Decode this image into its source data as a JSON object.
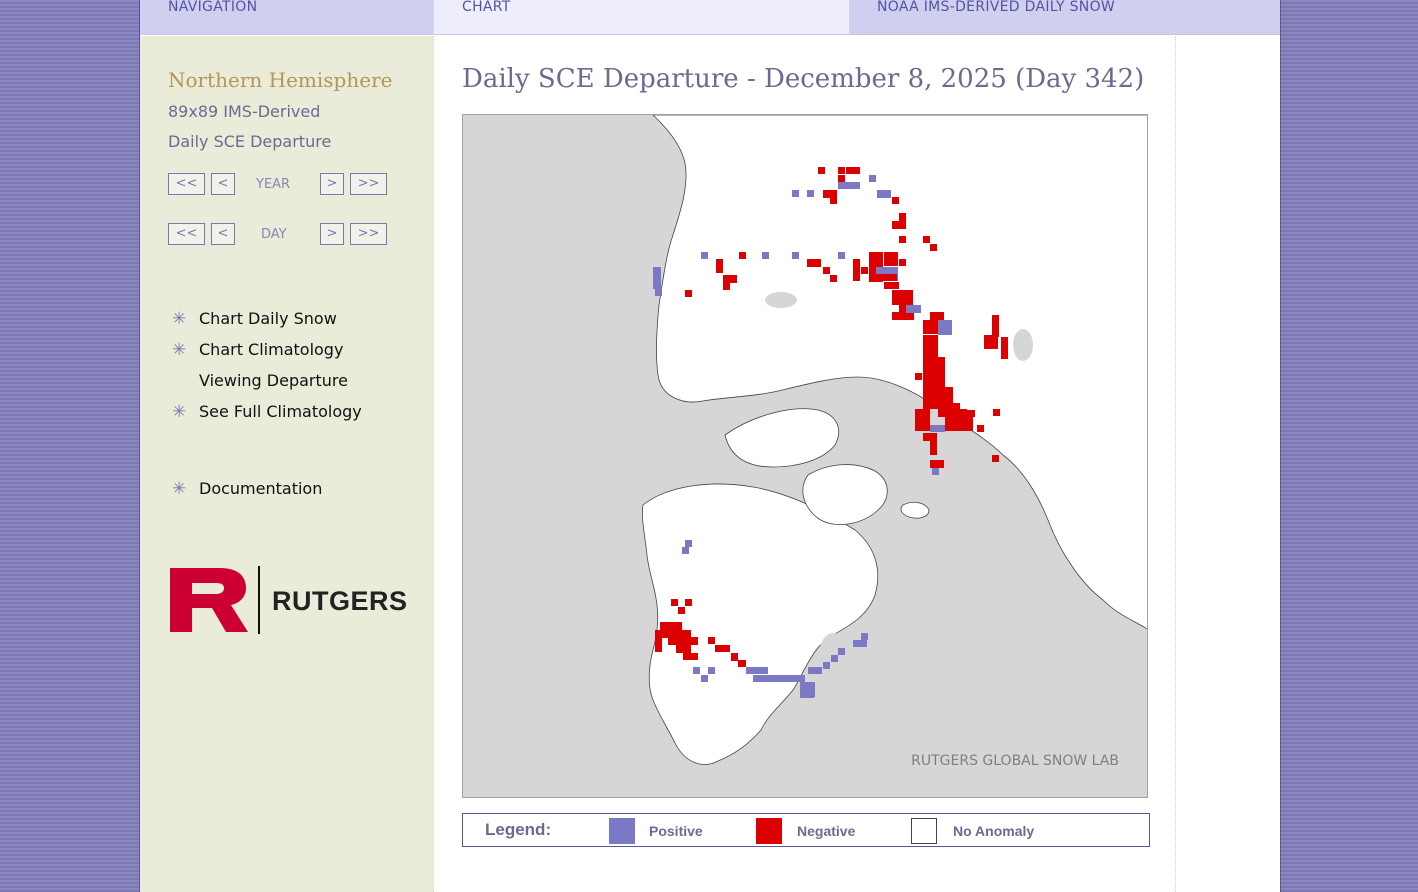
{
  "header": {
    "nav": "NAVIGATION",
    "chart": "CHART",
    "noaa": "NOAA IMS-DERIVED DAILY SNOW"
  },
  "sidebar": {
    "hemisphere": "Northern Hemisphere",
    "subtitle_1": "89x89 IMS-Derived",
    "subtitle_2": "Daily SCE Departure",
    "year_nav": {
      "first": "<<",
      "prev": "<",
      "label": "YEAR",
      "next": ">",
      "last": ">>"
    },
    "day_nav": {
      "first": "<<",
      "prev": "<",
      "label": "DAY",
      "next": ">",
      "last": ">>"
    },
    "menu": [
      {
        "label": "Chart Daily Snow",
        "icon": "asterisk-icon"
      },
      {
        "label": "Chart Climatology",
        "icon": "asterisk-icon"
      },
      {
        "label": "Viewing Departure",
        "icon": ""
      },
      {
        "label": "See Full Climatology",
        "icon": "asterisk-icon"
      },
      {
        "label": "Documentation",
        "icon": "asterisk-icon"
      }
    ],
    "logo_text": "RUTGERS"
  },
  "main": {
    "title": "Daily SCE Departure - December 8, 2025 (Day 342)",
    "map_credit": "RUTGERS GLOBAL SNOW LAB",
    "legend": {
      "title": "Legend:",
      "positive": "Positive",
      "negative": "Negative",
      "no_anomaly": "No Anomaly"
    }
  },
  "colors": {
    "positive": "#7b79c3",
    "negative": "#dd0000",
    "no_anomaly": "#ffffff",
    "ocean": "#d6d6d6",
    "land": "#ffffff",
    "accent": "#6c6a92",
    "rutgers_red": "#cc0033"
  }
}
